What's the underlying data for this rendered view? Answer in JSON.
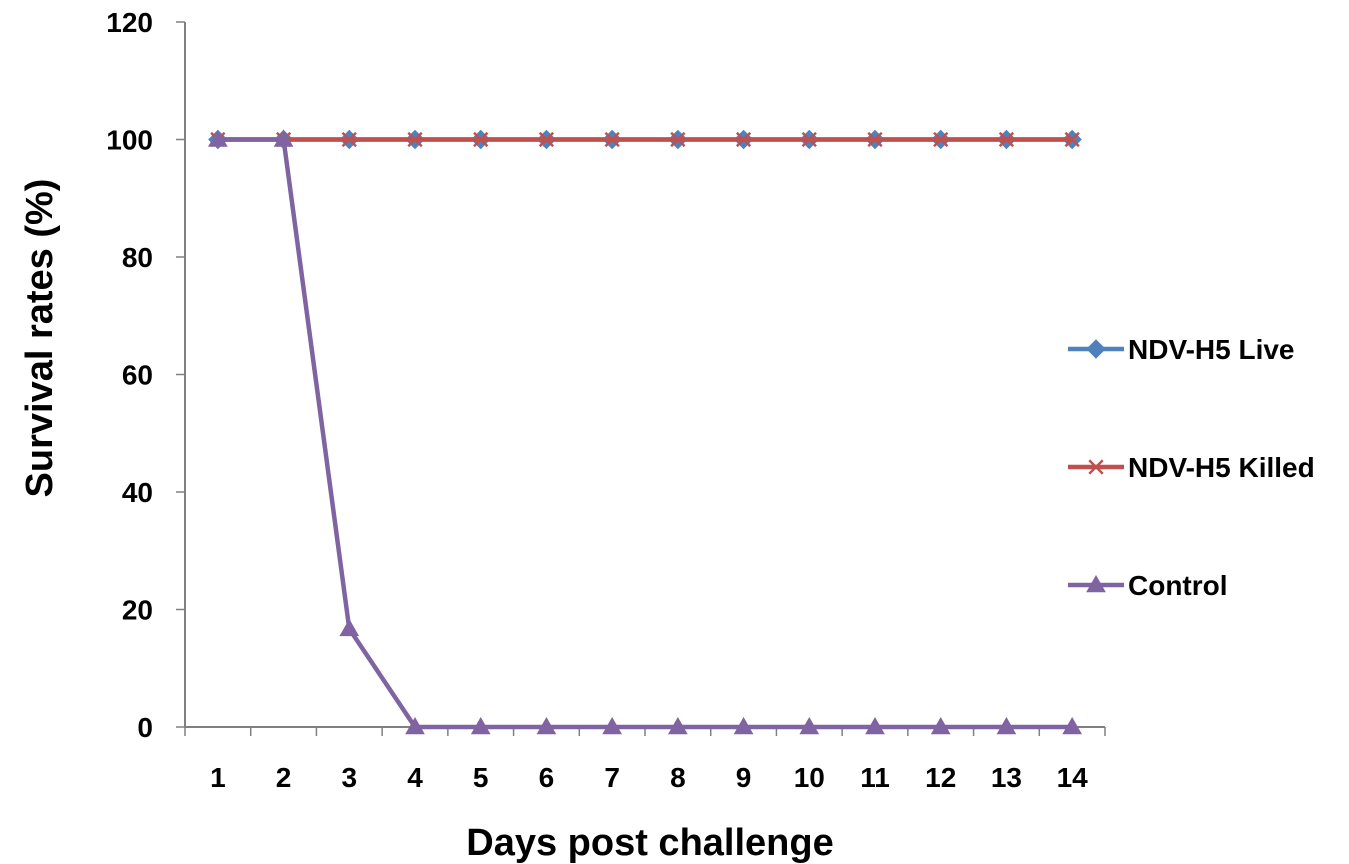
{
  "chart_data": {
    "type": "line",
    "title": "",
    "xlabel": "Days post challenge",
    "ylabel": "Survival rates (%)",
    "x": [
      1,
      2,
      3,
      4,
      5,
      6,
      7,
      8,
      9,
      10,
      11,
      12,
      13,
      14
    ],
    "ylim": [
      0,
      120
    ],
    "yticks": [
      0,
      20,
      40,
      60,
      80,
      100,
      120
    ],
    "grid": false,
    "legend_position": "right",
    "series": [
      {
        "name": "NDV-H5 Live",
        "color": "#4F81BD",
        "marker": "diamond",
        "values": [
          100,
          100,
          100,
          100,
          100,
          100,
          100,
          100,
          100,
          100,
          100,
          100,
          100,
          100
        ]
      },
      {
        "name": "NDV-H5 Killed",
        "color": "#C0504D",
        "marker": "x",
        "values": [
          100,
          100,
          100,
          100,
          100,
          100,
          100,
          100,
          100,
          100,
          100,
          100,
          100,
          100
        ]
      },
      {
        "name": "Control",
        "color": "#8064A2",
        "marker": "triangle",
        "values": [
          100,
          100,
          16.7,
          0,
          0,
          0,
          0,
          0,
          0,
          0,
          0,
          0,
          0,
          0
        ]
      }
    ]
  }
}
